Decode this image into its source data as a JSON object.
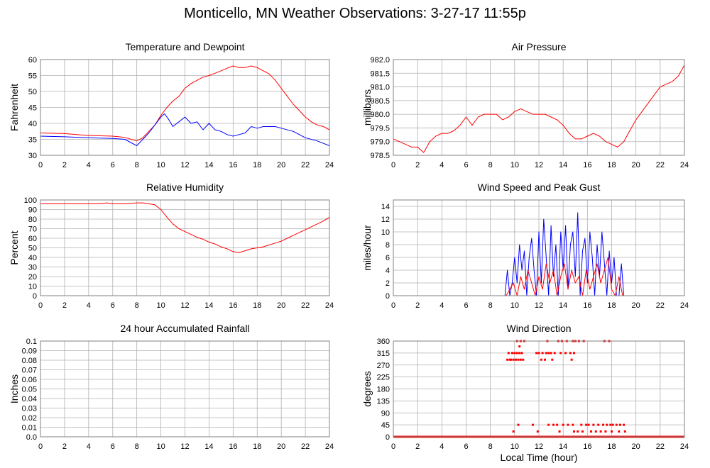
{
  "page_title": "Monticello, MN Weather Observations: 3-27-17 11:55p",
  "colors": {
    "red": "#ff0000",
    "blue": "#0000ff",
    "grid": "#b0b0b0",
    "plot_border": "#808080"
  },
  "chart_data": [
    {
      "id": "temperature",
      "type": "line",
      "title": "Temperature and Dewpoint",
      "ylabel": "Fahrenheit",
      "xlabel": "",
      "xlim": [
        0,
        24
      ],
      "ylim": [
        30,
        60
      ],
      "xticks": [
        0,
        2,
        4,
        6,
        8,
        10,
        12,
        14,
        16,
        18,
        20,
        22,
        24
      ],
      "yticks": [
        "30",
        "35",
        "40",
        "45",
        "50",
        "55",
        "60"
      ],
      "grid": true,
      "series": [
        {
          "color": "#ff0000",
          "x": [
            0,
            2,
            3,
            4,
            6,
            7,
            8,
            8.5,
            9,
            9.5,
            10,
            10.5,
            11,
            11.5,
            12,
            12.5,
            13,
            13.5,
            14,
            14.5,
            15,
            15.5,
            16,
            16.5,
            17,
            17.5,
            18,
            18.5,
            19,
            19.5,
            20,
            20.5,
            21,
            21.5,
            22,
            22.5,
            23,
            23.5,
            24
          ],
          "y": [
            37,
            36.8,
            36.5,
            36.2,
            36,
            35.6,
            34.5,
            35.5,
            37.5,
            39.5,
            42.5,
            45,
            47,
            48.5,
            51,
            52.5,
            53.5,
            54.5,
            55,
            55.7,
            56.5,
            57.3,
            58,
            57.5,
            57.5,
            58,
            57.5,
            56.5,
            55.5,
            53.5,
            51,
            48.5,
            46,
            44,
            42,
            40.5,
            39.5,
            39,
            38
          ]
        },
        {
          "color": "#0000ff",
          "x": [
            0,
            2,
            4,
            6,
            7,
            8,
            8.5,
            9,
            9.5,
            10,
            10.3,
            10.6,
            11,
            11.5,
            12,
            12.5,
            13,
            13.5,
            14,
            14.5,
            15,
            15.5,
            16,
            16.5,
            17,
            17.5,
            18,
            18.5,
            19,
            19.5,
            20,
            21,
            22,
            23,
            24
          ],
          "y": [
            36,
            35.8,
            35.5,
            35.3,
            35,
            33,
            35,
            37,
            39.5,
            42,
            43,
            41.5,
            39,
            40.5,
            42,
            40,
            40.5,
            38,
            40,
            38,
            37.5,
            36.5,
            36,
            36.5,
            37,
            39,
            38.5,
            39,
            39,
            39,
            38.5,
            37.5,
            35.5,
            34.5,
            33
          ]
        }
      ]
    },
    {
      "id": "pressure",
      "type": "line",
      "title": "Air Pressure",
      "ylabel": "millibars",
      "xlabel": "",
      "xlim": [
        0,
        24
      ],
      "ylim": [
        978.5,
        982.0
      ],
      "xticks": [
        0,
        2,
        4,
        6,
        8,
        10,
        12,
        14,
        16,
        18,
        20,
        22,
        24
      ],
      "yticks": [
        "978.5",
        "979.0",
        "979.5",
        "980.0",
        "980.5",
        "981.0",
        "981.5",
        "982.0"
      ],
      "grid": true,
      "series": [
        {
          "color": "#ff0000",
          "x": [
            0,
            0.5,
            1,
            1.5,
            2,
            2.5,
            3,
            3.5,
            4,
            4.5,
            5,
            5.5,
            6,
            6.5,
            7,
            7.5,
            8,
            8.5,
            9,
            9.5,
            10,
            10.5,
            11,
            11.5,
            12,
            12.5,
            13,
            13.5,
            14,
            14.5,
            15,
            15.5,
            16,
            16.5,
            17,
            17.5,
            18,
            18.5,
            19,
            19.5,
            20,
            20.5,
            21,
            21.5,
            22,
            22.5,
            23,
            23.5,
            24
          ],
          "y": [
            979.1,
            979.0,
            978.9,
            978.8,
            978.8,
            978.6,
            979.0,
            979.2,
            979.3,
            979.3,
            979.4,
            979.6,
            979.9,
            979.6,
            979.9,
            980.0,
            980.0,
            980.0,
            979.8,
            979.9,
            980.1,
            980.2,
            980.1,
            980.0,
            980.0,
            980.0,
            979.9,
            979.8,
            979.6,
            979.3,
            979.1,
            979.1,
            979.2,
            979.3,
            979.2,
            979.0,
            978.9,
            978.8,
            979.0,
            979.4,
            979.8,
            980.1,
            980.4,
            980.7,
            981.0,
            981.1,
            981.2,
            981.4,
            981.8
          ]
        }
      ]
    },
    {
      "id": "humidity",
      "type": "line",
      "title": "Relative Humidity",
      "ylabel": "Percent",
      "xlabel": "",
      "xlim": [
        0,
        24
      ],
      "ylim": [
        0,
        100
      ],
      "xticks": [
        0,
        2,
        4,
        6,
        8,
        10,
        12,
        14,
        16,
        18,
        20,
        22,
        24
      ],
      "yticks": [
        "0",
        "10",
        "20",
        "30",
        "40",
        "50",
        "60",
        "70",
        "80",
        "90",
        "100"
      ],
      "grid": true,
      "series": [
        {
          "color": "#ff0000",
          "x": [
            0,
            2,
            4,
            5,
            5.5,
            6,
            7,
            8,
            8.5,
            9,
            9.5,
            10,
            10.5,
            11,
            11.5,
            12,
            12.5,
            13,
            13.5,
            14,
            14.5,
            15,
            15.5,
            16,
            16.5,
            17,
            17.5,
            18,
            18.5,
            19,
            19.5,
            20,
            20.5,
            21,
            21.5,
            22,
            22.5,
            23,
            23.5,
            24
          ],
          "y": [
            96,
            96,
            96,
            96,
            97,
            96,
            96,
            97,
            97,
            96,
            95,
            90,
            82,
            75,
            70,
            67,
            64,
            61,
            59,
            56,
            54,
            51,
            49,
            46,
            45,
            47,
            49,
            50,
            51,
            53,
            55,
            57,
            60,
            63,
            66,
            69,
            72,
            75,
            78,
            82
          ]
        }
      ]
    },
    {
      "id": "wind-speed",
      "type": "line",
      "title": "Wind Speed and Peak Gust",
      "ylabel": "miles/hour",
      "xlabel": "",
      "xlim": [
        0,
        24
      ],
      "ylim": [
        0,
        15
      ],
      "xticks": [
        0,
        2,
        4,
        6,
        8,
        10,
        12,
        14,
        16,
        18,
        20,
        22,
        24
      ],
      "yticks": [
        "0",
        "2",
        "4",
        "6",
        "8",
        "10",
        "12",
        "14"
      ],
      "grid": true,
      "series": [
        {
          "color": "#0000ff",
          "x": [
            0,
            9.2,
            9.4,
            9.6,
            9.8,
            10,
            10.2,
            10.4,
            10.6,
            10.8,
            11,
            11.2,
            11.4,
            11.6,
            11.8,
            12,
            12.2,
            12.4,
            12.6,
            12.8,
            13,
            13.2,
            13.4,
            13.6,
            13.8,
            14,
            14.2,
            14.4,
            14.6,
            14.8,
            15,
            15.2,
            15.4,
            15.6,
            15.8,
            16,
            16.2,
            16.4,
            16.6,
            16.8,
            17,
            17.2,
            17.4,
            17.6,
            17.8,
            18,
            18.2,
            18.4,
            18.6,
            18.8,
            19,
            19.2,
            19.4,
            24
          ],
          "y": [
            0,
            0,
            4,
            0,
            2,
            6,
            2,
            8,
            4,
            7,
            0,
            6,
            9,
            4,
            0,
            10,
            2,
            12,
            6,
            0,
            11,
            3,
            8,
            0,
            10,
            4,
            11,
            1,
            8,
            10,
            3,
            13,
            0,
            7,
            9,
            2,
            10,
            6,
            0,
            8,
            3,
            10,
            5,
            0,
            7,
            2,
            6,
            0,
            0,
            5,
            0,
            0,
            0,
            0
          ]
        },
        {
          "color": "#ff0000",
          "x": [
            0,
            9.3,
            9.6,
            9.9,
            10.2,
            10.5,
            10.8,
            11.1,
            11.4,
            11.7,
            12,
            12.3,
            12.6,
            12.9,
            13.2,
            13.5,
            13.8,
            14.1,
            14.4,
            14.7,
            15,
            15.3,
            15.6,
            15.9,
            16.2,
            16.5,
            16.8,
            17.1,
            17.4,
            17.7,
            18,
            18.3,
            18.6,
            18.9,
            19.2,
            24
          ],
          "y": [
            0,
            0,
            1,
            2,
            0,
            3,
            1,
            4,
            2,
            0,
            3,
            1,
            5,
            2,
            4,
            0,
            3,
            5,
            1,
            4,
            2,
            3,
            0,
            4,
            1,
            3,
            5,
            2,
            4,
            6,
            1,
            0,
            3,
            0,
            0,
            0
          ]
        }
      ]
    },
    {
      "id": "rainfall",
      "type": "line",
      "title": "24 hour Accumulated Rainfall",
      "ylabel": "Inches",
      "xlabel": "",
      "xlim": [
        0,
        24
      ],
      "ylim": [
        0,
        0.1
      ],
      "xticks": [
        0,
        2,
        4,
        6,
        8,
        10,
        12,
        14,
        16,
        18,
        20,
        22,
        24
      ],
      "yticks": [
        "0.0",
        "0.01",
        "0.02",
        "0.03",
        "0.04",
        "0.05",
        "0.06",
        "0.07",
        "0.08",
        "0.09",
        "0.1"
      ],
      "grid": true,
      "series": [
        {
          "color": "#ff0000",
          "x": [
            0,
            24
          ],
          "y": [
            0,
            0
          ]
        }
      ]
    },
    {
      "id": "wind-direction",
      "type": "scatter",
      "title": "Wind Direction",
      "ylabel": "degrees",
      "xlabel": "Local Time (hour)",
      "xlim": [
        0,
        24
      ],
      "ylim": [
        0,
        360
      ],
      "xticks": [
        0,
        2,
        4,
        6,
        8,
        10,
        12,
        14,
        16,
        18,
        20,
        22,
        24
      ],
      "yticks": [
        "0",
        "45",
        "90",
        "135",
        "180",
        "225",
        "270",
        "315",
        "360"
      ],
      "grid": true,
      "baseline": {
        "color": "#ff0000",
        "x": [
          0,
          9.3,
          19.4,
          24
        ],
        "y": [
          0,
          0,
          0,
          0
        ]
      },
      "series": [
        {
          "color": "#ff0000",
          "x": [
            9.4,
            9.6,
            9.7,
            9.9,
            10.1,
            10.3,
            10.5,
            10.7,
            9.5,
            9.8,
            10.0,
            10.2,
            10.4,
            10.6,
            10.4,
            11.8,
            12.0,
            12.3,
            12.6,
            12.8,
            13.0,
            13.3,
            13.8,
            14.2,
            14.6,
            14.9,
            12.2,
            12.5,
            13.1,
            14.7,
            10.2,
            10.5,
            10.8,
            12.7,
            13.6,
            13.9,
            14.3,
            14.8,
            15.0,
            15.3,
            15.7,
            17.4,
            17.8,
            10.3,
            11.5,
            12.8,
            13.2,
            13.5,
            14.0,
            14.4,
            14.8,
            15.5,
            15.9,
            16.1,
            16.5,
            16.9,
            17.3,
            17.6,
            17.9,
            18.1,
            18.4,
            18.7,
            19.0,
            9.9,
            11.9,
            13.7,
            14.9,
            15.2,
            15.6,
            16.3,
            16.7,
            17.1,
            17.5,
            18.0,
            18.6,
            19.1
          ],
          "y": [
            290,
            290,
            290,
            290,
            290,
            290,
            290,
            290,
            315,
            315,
            315,
            315,
            315,
            315,
            340,
            315,
            315,
            315,
            315,
            315,
            315,
            315,
            315,
            315,
            315,
            315,
            290,
            290,
            290,
            290,
            360,
            360,
            360,
            360,
            360,
            360,
            360,
            360,
            360,
            360,
            360,
            360,
            360,
            45,
            45,
            45,
            45,
            45,
            45,
            45,
            45,
            45,
            45,
            45,
            45,
            45,
            45,
            45,
            45,
            45,
            45,
            45,
            45,
            20,
            20,
            20,
            20,
            20,
            20,
            20,
            20,
            20,
            20,
            20,
            20,
            20
          ]
        }
      ]
    }
  ]
}
